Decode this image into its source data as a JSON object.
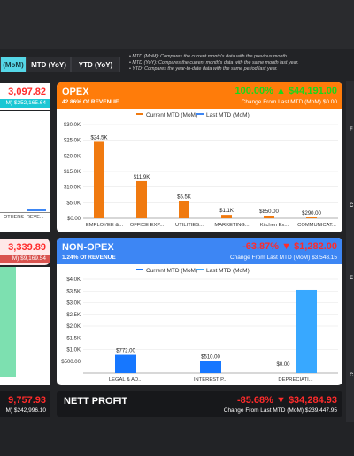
{
  "tabs": [
    {
      "label": "(MoM)",
      "active": true
    },
    {
      "label": "MTD (YoY)",
      "active": false
    },
    {
      "label": "YTD (YoY)",
      "active": false
    }
  ],
  "notes": [
    "MTD (MoM): Compares the current month's data with the previous month.",
    "MTD (YoY): Compares the current month's data with the same month last year.",
    "YTD: Compares the year-to-date data with the same period last year."
  ],
  "left_partial": {
    "top_value": "3,097.82",
    "top_change": "M) $252,165.64",
    "mid_axis_label": "OTHERS",
    "mid_axis_label2": "REVE...",
    "mid_value": "3,339.89",
    "mid_change": "M) $9,169.54",
    "bottom_value": "9,757.93",
    "bottom_change": "M) $242,996.10"
  },
  "opex": {
    "title": "OPEX",
    "subtitle": "42.86% Of REVENUE",
    "value": "100.00% ▲ $44,191.00",
    "change": "Change From Last MTD (MoM) $0.00",
    "header_color": "#ff7c0a",
    "value_color": "#1bd81b"
  },
  "nonopex": {
    "title": "NON-OPEX",
    "subtitle": "1.24% Of REVENUE",
    "value": "-63.87% ▼ $1,282.00",
    "change": "Change From Last MTD (MoM) $3,548.15",
    "header_color": "#3d86f4",
    "value_color": "#ff2b2b"
  },
  "nett_profit": {
    "title": "NETT PROFIT",
    "value": "-85.68% ▼ $34,284.93",
    "change": "Change From Last MTD (MoM) $239,447.95"
  },
  "right_strip": [
    "F",
    "C",
    "E",
    "C"
  ],
  "chart_data": [
    {
      "type": "bar",
      "legend": [
        "Current MTD (MoM)",
        "Last MTD (MoM)"
      ],
      "colors": [
        "#f07a10",
        "#3d86f4"
      ],
      "categories": [
        "EMPLOYEE &...",
        "OFFICE EXP...",
        "UTILITIES...",
        "MARKETING...",
        "Kitchen Ex...",
        "COMMUNICAT..."
      ],
      "series": [
        {
          "name": "Current MTD (MoM)",
          "values": [
            24500,
            11900,
            5500,
            1100,
            850,
            290
          ]
        },
        {
          "name": "Last MTD (MoM)",
          "values": [
            0,
            0,
            0,
            0,
            0,
            0
          ]
        }
      ],
      "data_labels": [
        "$24.5K",
        "$11.9K",
        "$5.5K",
        "$1.1K",
        "$850.00",
        "$290.00"
      ],
      "yticks": [
        "$0.00",
        "$5.0K",
        "$10.0K",
        "$15.0K",
        "$20.0K",
        "$25.0K",
        "$30.0K"
      ],
      "ylim": [
        0,
        30000
      ]
    },
    {
      "type": "bar",
      "legend": [
        "Current MTD (MoM)",
        "Last MTD (MoM)"
      ],
      "colors": [
        "#1677ff",
        "#38a8ff"
      ],
      "categories": [
        "LEGAL & AD...",
        "INTEREST P...",
        "DEPRECIATI..."
      ],
      "series": [
        {
          "name": "Current MTD (MoM)",
          "values": [
            772,
            510,
            0
          ]
        },
        {
          "name": "Last MTD (MoM)",
          "values": [
            0,
            0,
            3548.15
          ]
        }
      ],
      "data_labels": [
        "$772.00",
        "$510.00",
        "$0.00"
      ],
      "yticks": [
        "$500.00",
        "$1.0K",
        "$1.5K",
        "$2.0K",
        "$2.5K",
        "$3.0K",
        "$3.5K",
        "$4.0K"
      ],
      "ylim": [
        0,
        4000
      ]
    }
  ]
}
